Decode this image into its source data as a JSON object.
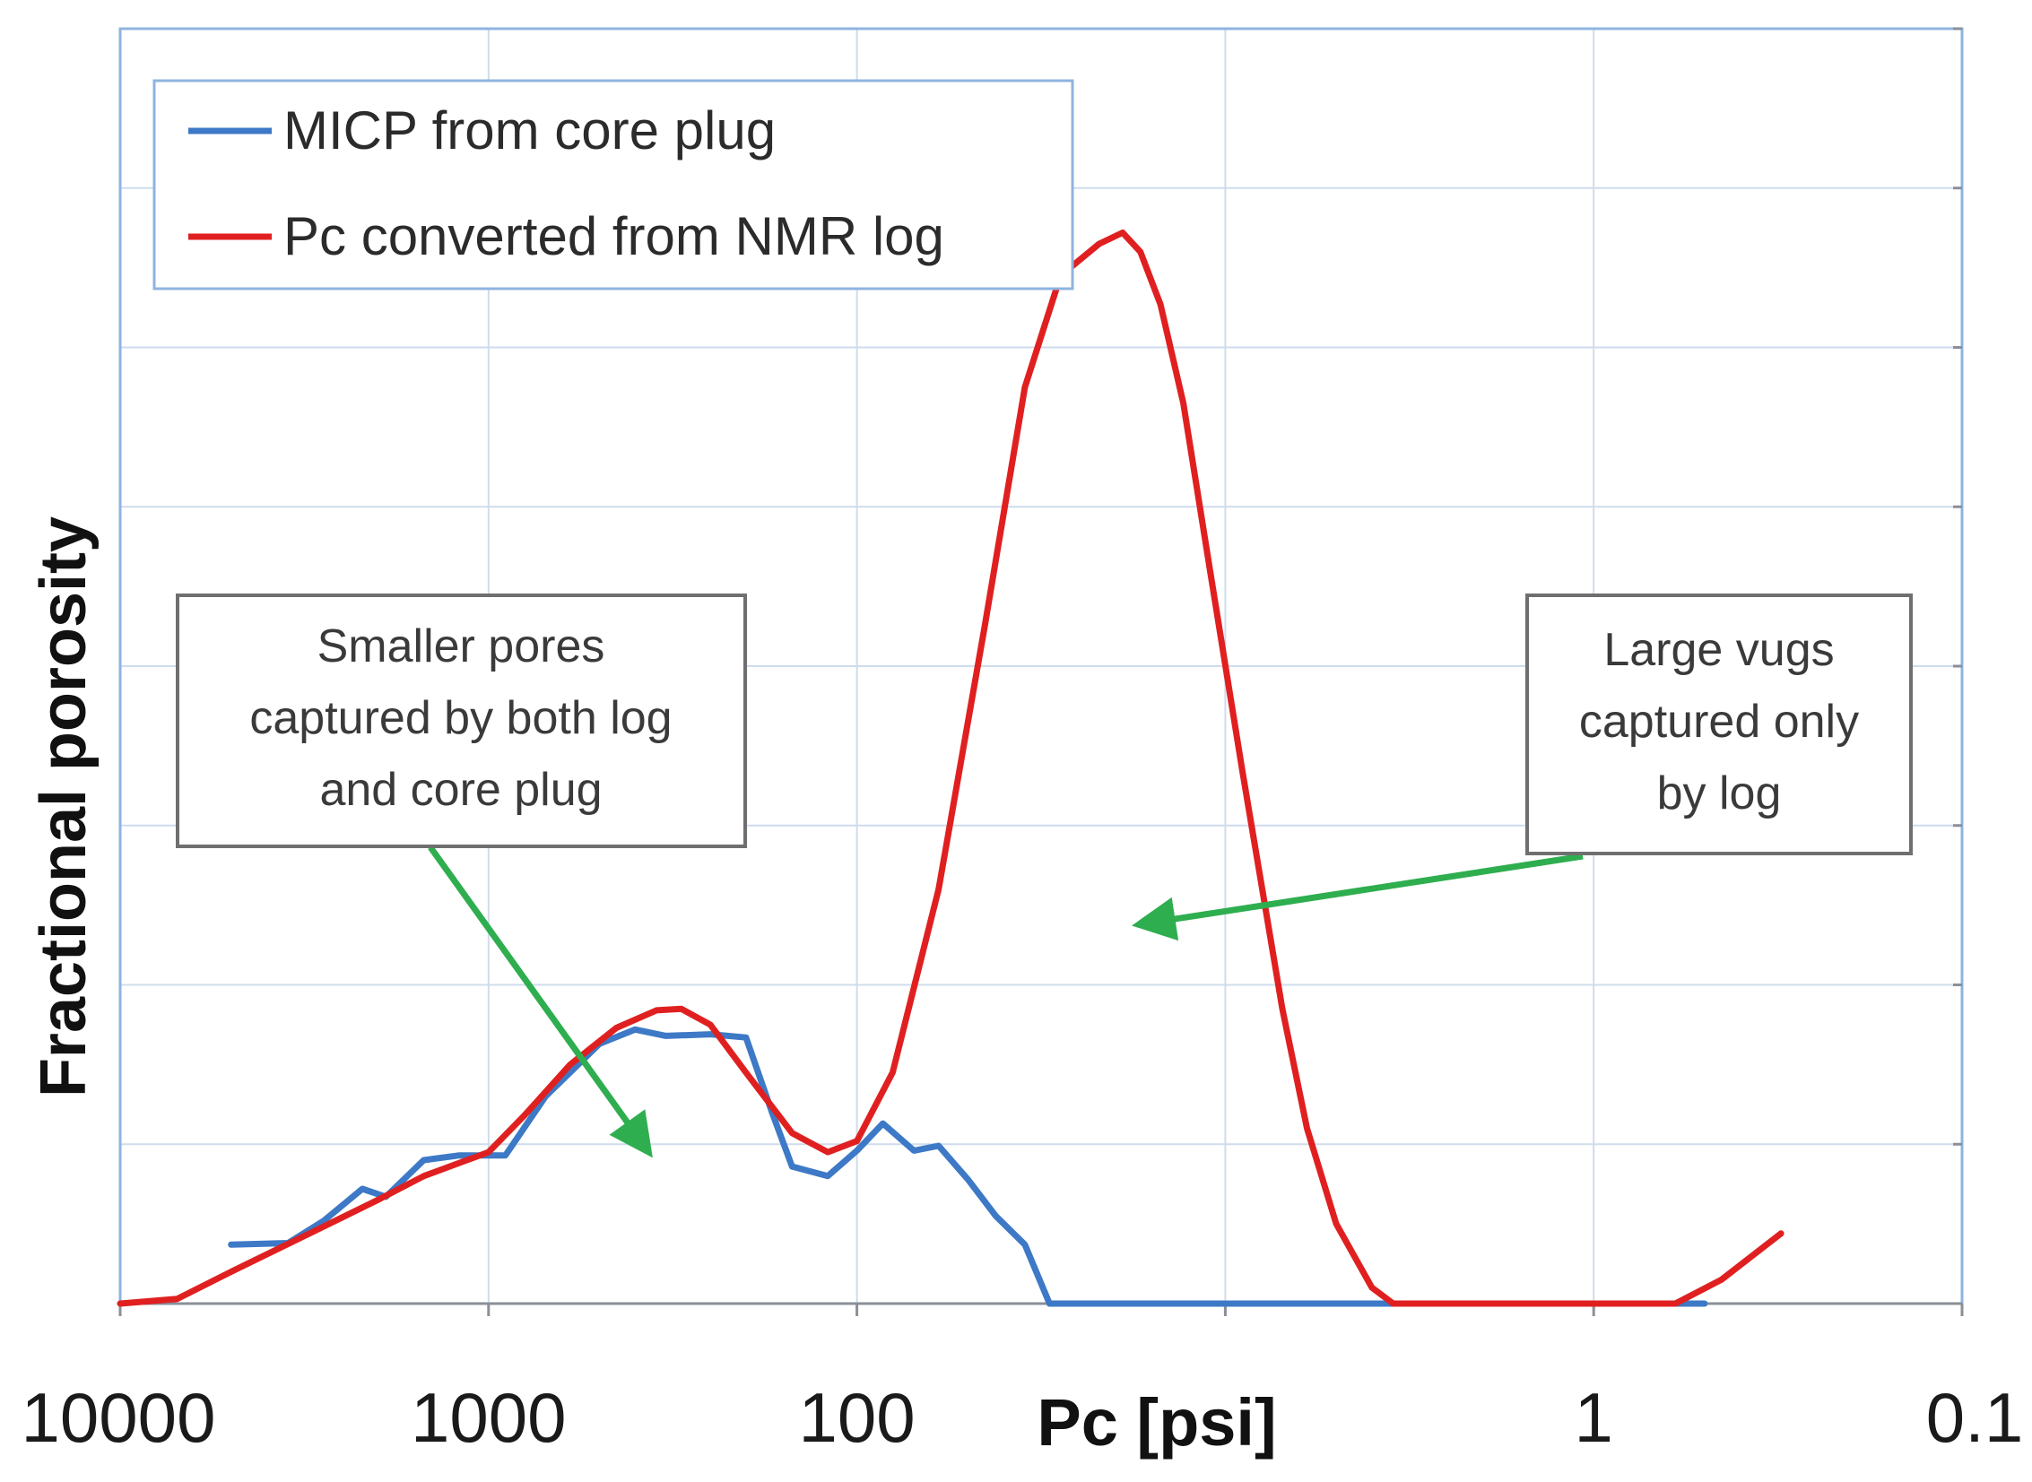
{
  "chart_data": {
    "type": "line",
    "title": "",
    "xlabel": "Pc [psi]",
    "ylabel": "Fractional porosity",
    "x_scale": "log",
    "x_reversed": true,
    "xlim": [
      10000,
      0.1
    ],
    "x_ticks": [
      10000,
      1000,
      100,
      1,
      0.1
    ],
    "x_tick_labels": [
      "10000",
      "1000",
      "100",
      "1",
      "0.1"
    ],
    "x_grid_values": [
      10000,
      1000,
      100,
      10,
      1,
      0.1
    ],
    "ylim": [
      0,
      8
    ],
    "y_gridlines": [
      1,
      2,
      3,
      4,
      5,
      6,
      7,
      8
    ],
    "y_tick_labels": [],
    "grid": true,
    "legend_position": "top-left",
    "series": [
      {
        "name": "MICP from core plug",
        "color": "#3d79c6",
        "x": [
          5000,
          3500,
          2800,
          2200,
          1900,
          1500,
          1200,
          1000,
          900,
          700,
          500,
          400,
          330,
          250,
          200,
          170,
          150,
          120,
          100,
          85,
          70,
          60,
          50,
          42,
          35,
          30,
          22,
          15,
          10,
          5,
          2,
          1,
          0.5
        ],
        "y": [
          0.37,
          0.38,
          0.52,
          0.72,
          0.67,
          0.9,
          0.93,
          0.93,
          0.93,
          1.3,
          1.63,
          1.72,
          1.68,
          1.69,
          1.67,
          1.2,
          0.86,
          0.8,
          0.96,
          1.13,
          0.96,
          0.99,
          0.78,
          0.55,
          0.37,
          0.0,
          0.0,
          0.0,
          0.0,
          0.0,
          0.0,
          0.0,
          0.0
        ]
      },
      {
        "name": "Pc converted from NMR log",
        "color": "#e02020",
        "x": [
          10000,
          7000,
          5000,
          3000,
          2000,
          1500,
          1000,
          800,
          600,
          450,
          350,
          300,
          250,
          200,
          150,
          120,
          100,
          80,
          60,
          45,
          35,
          28,
          22,
          19,
          17,
          15,
          13,
          11,
          9,
          7,
          6,
          5,
          4,
          3.5,
          3,
          2.5,
          2,
          1.5,
          1,
          0.8,
          0.6,
          0.45,
          0.31
        ],
        "y": [
          0.0,
          0.03,
          0.2,
          0.45,
          0.65,
          0.8,
          0.95,
          1.18,
          1.5,
          1.73,
          1.84,
          1.85,
          1.75,
          1.45,
          1.07,
          0.95,
          1.02,
          1.45,
          2.6,
          4.25,
          5.75,
          6.45,
          6.65,
          6.72,
          6.6,
          6.27,
          5.65,
          4.6,
          3.35,
          1.85,
          1.1,
          0.5,
          0.1,
          0.0,
          0.0,
          0.0,
          0.0,
          0.0,
          0.0,
          0.0,
          0.0,
          0.15,
          0.44
        ]
      }
    ],
    "annotations": [
      {
        "lines": [
          "Smaller pores",
          "captured by both log",
          "and core plug"
        ],
        "arrow_color": "#2eae4f",
        "arrow_target": {
          "x": 370,
          "y": 0.96
        }
      },
      {
        "lines": [
          "Large vugs",
          "captured only",
          "by log"
        ],
        "arrow_color": "#2eae4f",
        "arrow_target": {
          "x": 17,
          "y": 2.38
        }
      }
    ]
  }
}
